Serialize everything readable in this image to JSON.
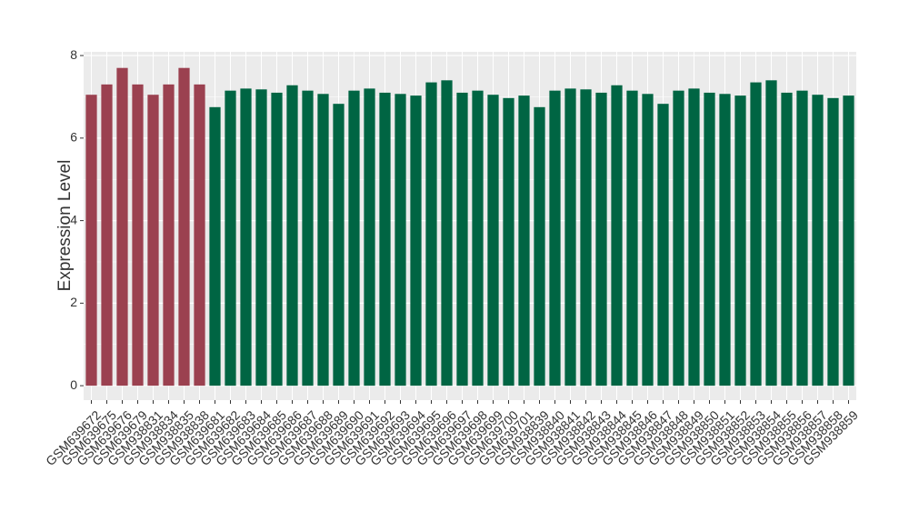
{
  "chart_data": {
    "type": "bar",
    "y_label": "Expression Level",
    "categories": [
      "GSM639672",
      "GSM639675",
      "GSM639676",
      "GSM639679",
      "GSM938831",
      "GSM938834",
      "GSM938835",
      "GSM938838",
      "GSM639681",
      "GSM639682",
      "GSM639683",
      "GSM639684",
      "GSM639685",
      "GSM639686",
      "GSM639687",
      "GSM639688",
      "GSM639689",
      "GSM639690",
      "GSM639691",
      "GSM639692",
      "GSM639693",
      "GSM639694",
      "GSM639695",
      "GSM639696",
      "GSM639697",
      "GSM639698",
      "GSM639699",
      "GSM639700",
      "GSM639701",
      "GSM938839",
      "GSM938840",
      "GSM938841",
      "GSM938842",
      "GSM938843",
      "GSM938844",
      "GSM938845",
      "GSM938846",
      "GSM938847",
      "GSM938848",
      "GSM938849",
      "GSM938850",
      "GSM938851",
      "GSM938852",
      "GSM938853",
      "GSM938854",
      "GSM938855",
      "GSM938856",
      "GSM938857",
      "GSM938858",
      "GSM938859"
    ],
    "values": [
      7.05,
      7.3,
      7.7,
      7.3,
      7.05,
      7.3,
      7.7,
      7.3,
      6.75,
      7.15,
      7.2,
      7.18,
      7.1,
      7.28,
      7.15,
      7.07,
      6.83,
      7.15,
      7.2,
      7.1,
      7.07,
      7.03,
      7.35,
      7.4,
      7.1,
      7.15,
      7.05,
      6.97,
      7.03,
      6.75,
      7.15,
      7.2,
      7.18,
      7.1,
      7.28,
      7.15,
      7.07,
      6.83,
      7.15,
      7.2,
      7.1,
      7.07,
      7.03,
      7.35,
      7.4,
      7.1,
      7.15,
      7.05,
      6.97,
      7.03
    ],
    "colors": [
      "#9b4150",
      "#9b4150",
      "#9b4150",
      "#9b4150",
      "#9b4150",
      "#9b4150",
      "#9b4150",
      "#9b4150",
      "#006543",
      "#006543",
      "#006543",
      "#006543",
      "#006543",
      "#006543",
      "#006543",
      "#006543",
      "#006543",
      "#006543",
      "#006543",
      "#006543",
      "#006543",
      "#006543",
      "#006543",
      "#006543",
      "#006543",
      "#006543",
      "#006543",
      "#006543",
      "#006543",
      "#006543",
      "#006543",
      "#006543",
      "#006543",
      "#006543",
      "#006543",
      "#006543",
      "#006543",
      "#006543",
      "#006543",
      "#006543",
      "#006543",
      "#006543",
      "#006543",
      "#006543",
      "#006543",
      "#006543",
      "#006543",
      "#006543",
      "#006543",
      "#006543"
    ],
    "ylim": [
      -0.35,
      8.09
    ],
    "yticks": [
      0,
      2,
      4,
      6,
      8
    ],
    "grid": true
  }
}
